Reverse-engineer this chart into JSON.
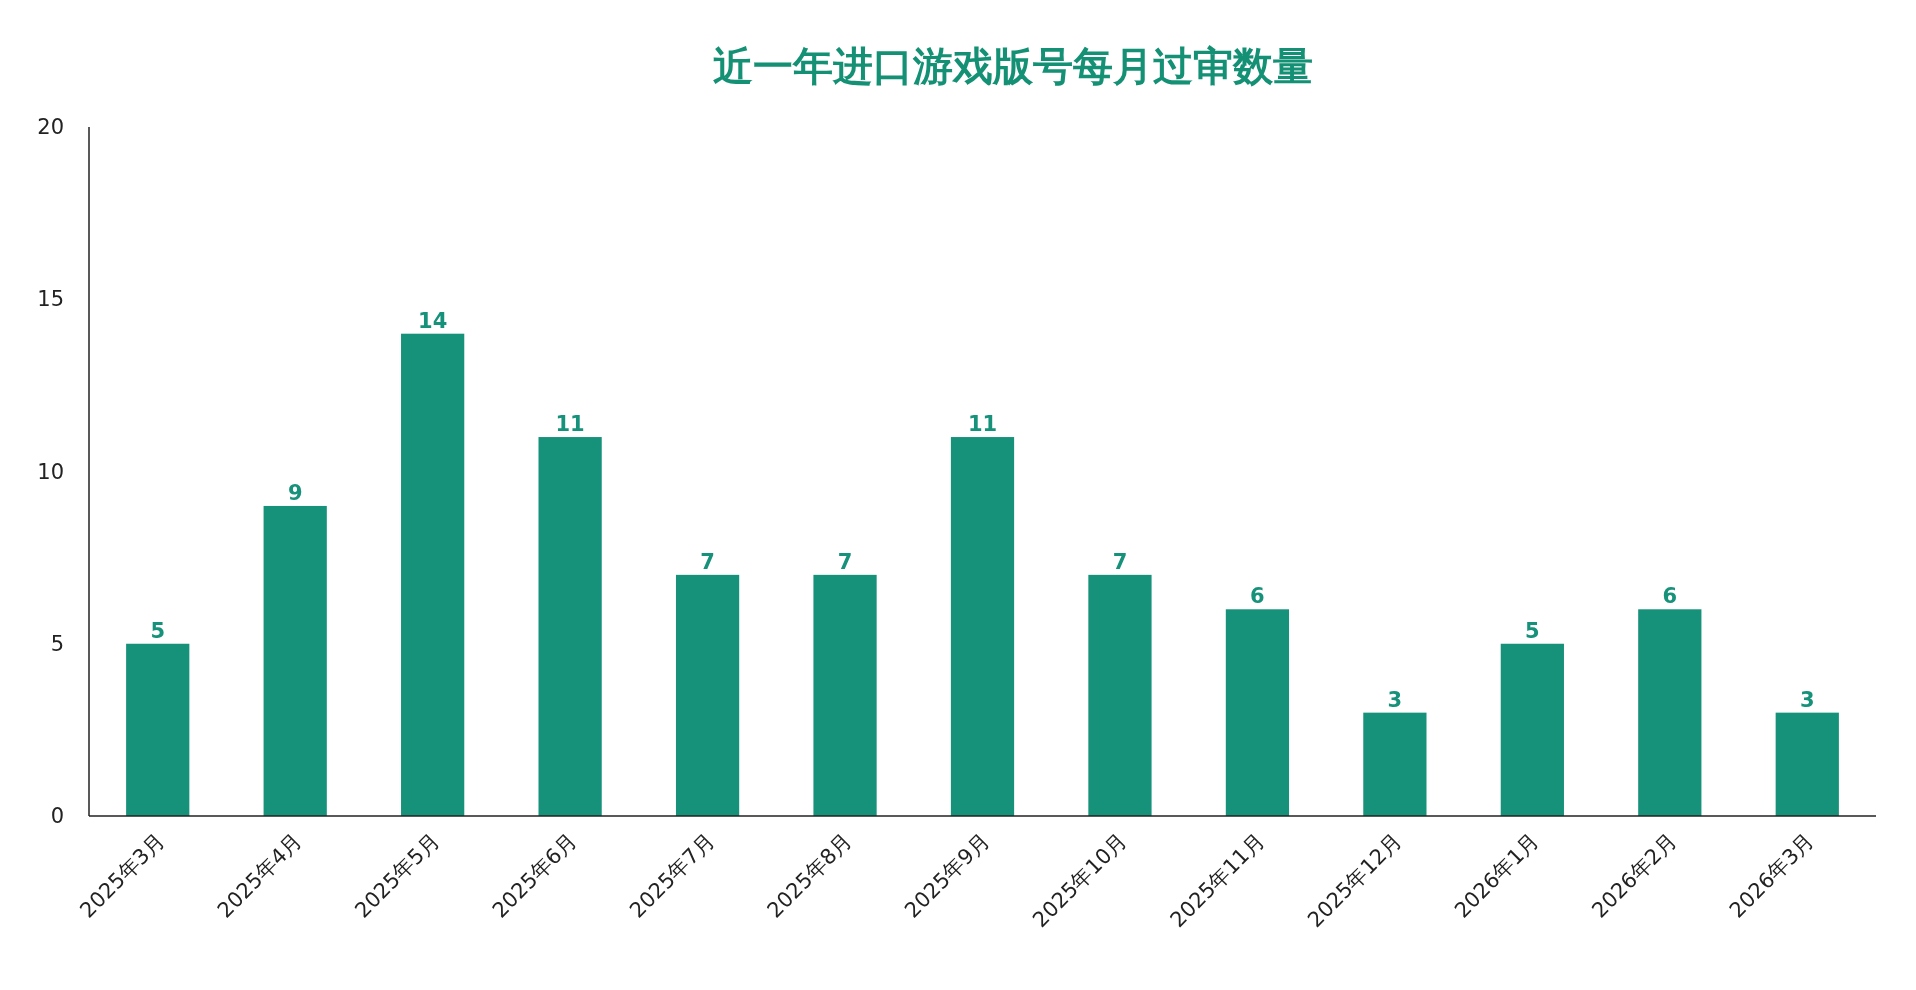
{
  "chart_data": {
    "type": "bar",
    "title": "近一年进口游戏版号每月过审数量",
    "categories": [
      "2025年3月",
      "2025年4月",
      "2025年5月",
      "2025年6月",
      "2025年7月",
      "2025年8月",
      "2025年9月",
      "2025年10月",
      "2025年11月",
      "2025年12月",
      "2026年1月",
      "2026年2月",
      "2026年3月"
    ],
    "values": [
      5,
      9,
      14,
      11,
      7,
      7,
      11,
      7,
      6,
      3,
      5,
      6,
      3
    ],
    "color": "#16917a",
    "ylim": [
      0,
      20
    ],
    "yticks": [
      0,
      5,
      10,
      15,
      20
    ],
    "data_labels": true,
    "grid": false
  }
}
